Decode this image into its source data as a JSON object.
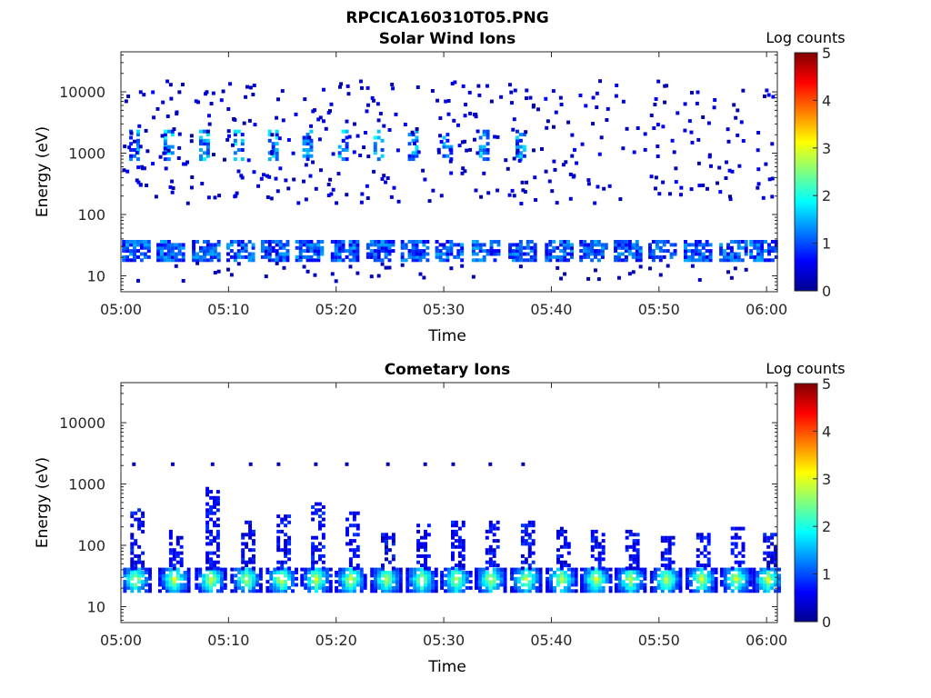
{
  "figure": {
    "title": "RPCICA160310T05.PNG"
  },
  "colors": {
    "axis": "#262626",
    "text": "#262626",
    "background": "#ffffff",
    "colormap": "jet"
  },
  "chart_data": [
    {
      "type": "heatmap",
      "title": "Solar Wind Ions",
      "xlabel": "Time",
      "ylabel": "Energy (eV)",
      "x_ticks": [
        "05:00",
        "05:10",
        "05:20",
        "05:30",
        "05:40",
        "05:50",
        "06:00"
      ],
      "x_range_minutes": [
        0,
        61
      ],
      "y_scale": "log",
      "y_ticks": [
        "10",
        "100",
        "1000",
        "10000"
      ],
      "y_range_eV": [
        5.5,
        45000
      ],
      "grid": false,
      "colorbar": {
        "label": "Log counts",
        "ticks": [
          "0",
          "1",
          "2",
          "3",
          "4",
          "5"
        ],
        "range": [
          0,
          5
        ]
      },
      "pattern": {
        "low_band_eV": [
          18,
          40
        ],
        "low_band_log_counts": 1.0,
        "bursts_minutes": [
          1.1,
          4.3,
          7.6,
          10.8,
          14.0,
          17.2,
          20.5,
          23.8,
          27.0,
          30.2,
          33.6,
          37.0,
          40.4,
          43.6,
          46.8,
          50.0,
          53.3,
          56.6,
          59.4
        ],
        "upper_band_eV": [
          800,
          2500
        ],
        "upper_band_log_counts": 1.6,
        "upper_band_end_minutes": 39,
        "scattered_range_eV": [
          150,
          15000
        ],
        "scattered_log_counts": 0.2
      }
    },
    {
      "type": "heatmap",
      "title": "Cometary Ions",
      "xlabel": "Time",
      "ylabel": "Energy (eV)",
      "x_ticks": [
        "05:00",
        "05:10",
        "05:20",
        "05:30",
        "05:40",
        "05:50",
        "06:00"
      ],
      "x_range_minutes": [
        0,
        61
      ],
      "y_scale": "log",
      "y_ticks": [
        "10",
        "100",
        "1000",
        "10000"
      ],
      "y_range_eV": [
        5.5,
        45000
      ],
      "grid": false,
      "colorbar": {
        "label": "Log counts",
        "ticks": [
          "0",
          "1",
          "2",
          "3",
          "4",
          "5"
        ],
        "range": [
          0,
          5
        ]
      },
      "pattern": {
        "core_band_eV": [
          18,
          42
        ],
        "core_peak_eV": 28,
        "core_peak_log_counts": 2.8,
        "bursts_minutes": [
          1.2,
          4.8,
          8.2,
          11.5,
          14.8,
          18.0,
          21.2,
          24.5,
          27.8,
          31.0,
          34.2,
          37.5,
          40.8,
          44.0,
          47.2,
          50.5,
          53.8,
          57.0,
          60.0
        ],
        "tail_top_eV": [
          400,
          180,
          900,
          250,
          300,
          500,
          350,
          150,
          220,
          260,
          240,
          260,
          200,
          180,
          170,
          140,
          160,
          200,
          150
        ],
        "tail_log_counts": 0.6,
        "sparse_high_row_eV": 2100,
        "sparse_high_row_end_minutes": 39
      }
    }
  ]
}
